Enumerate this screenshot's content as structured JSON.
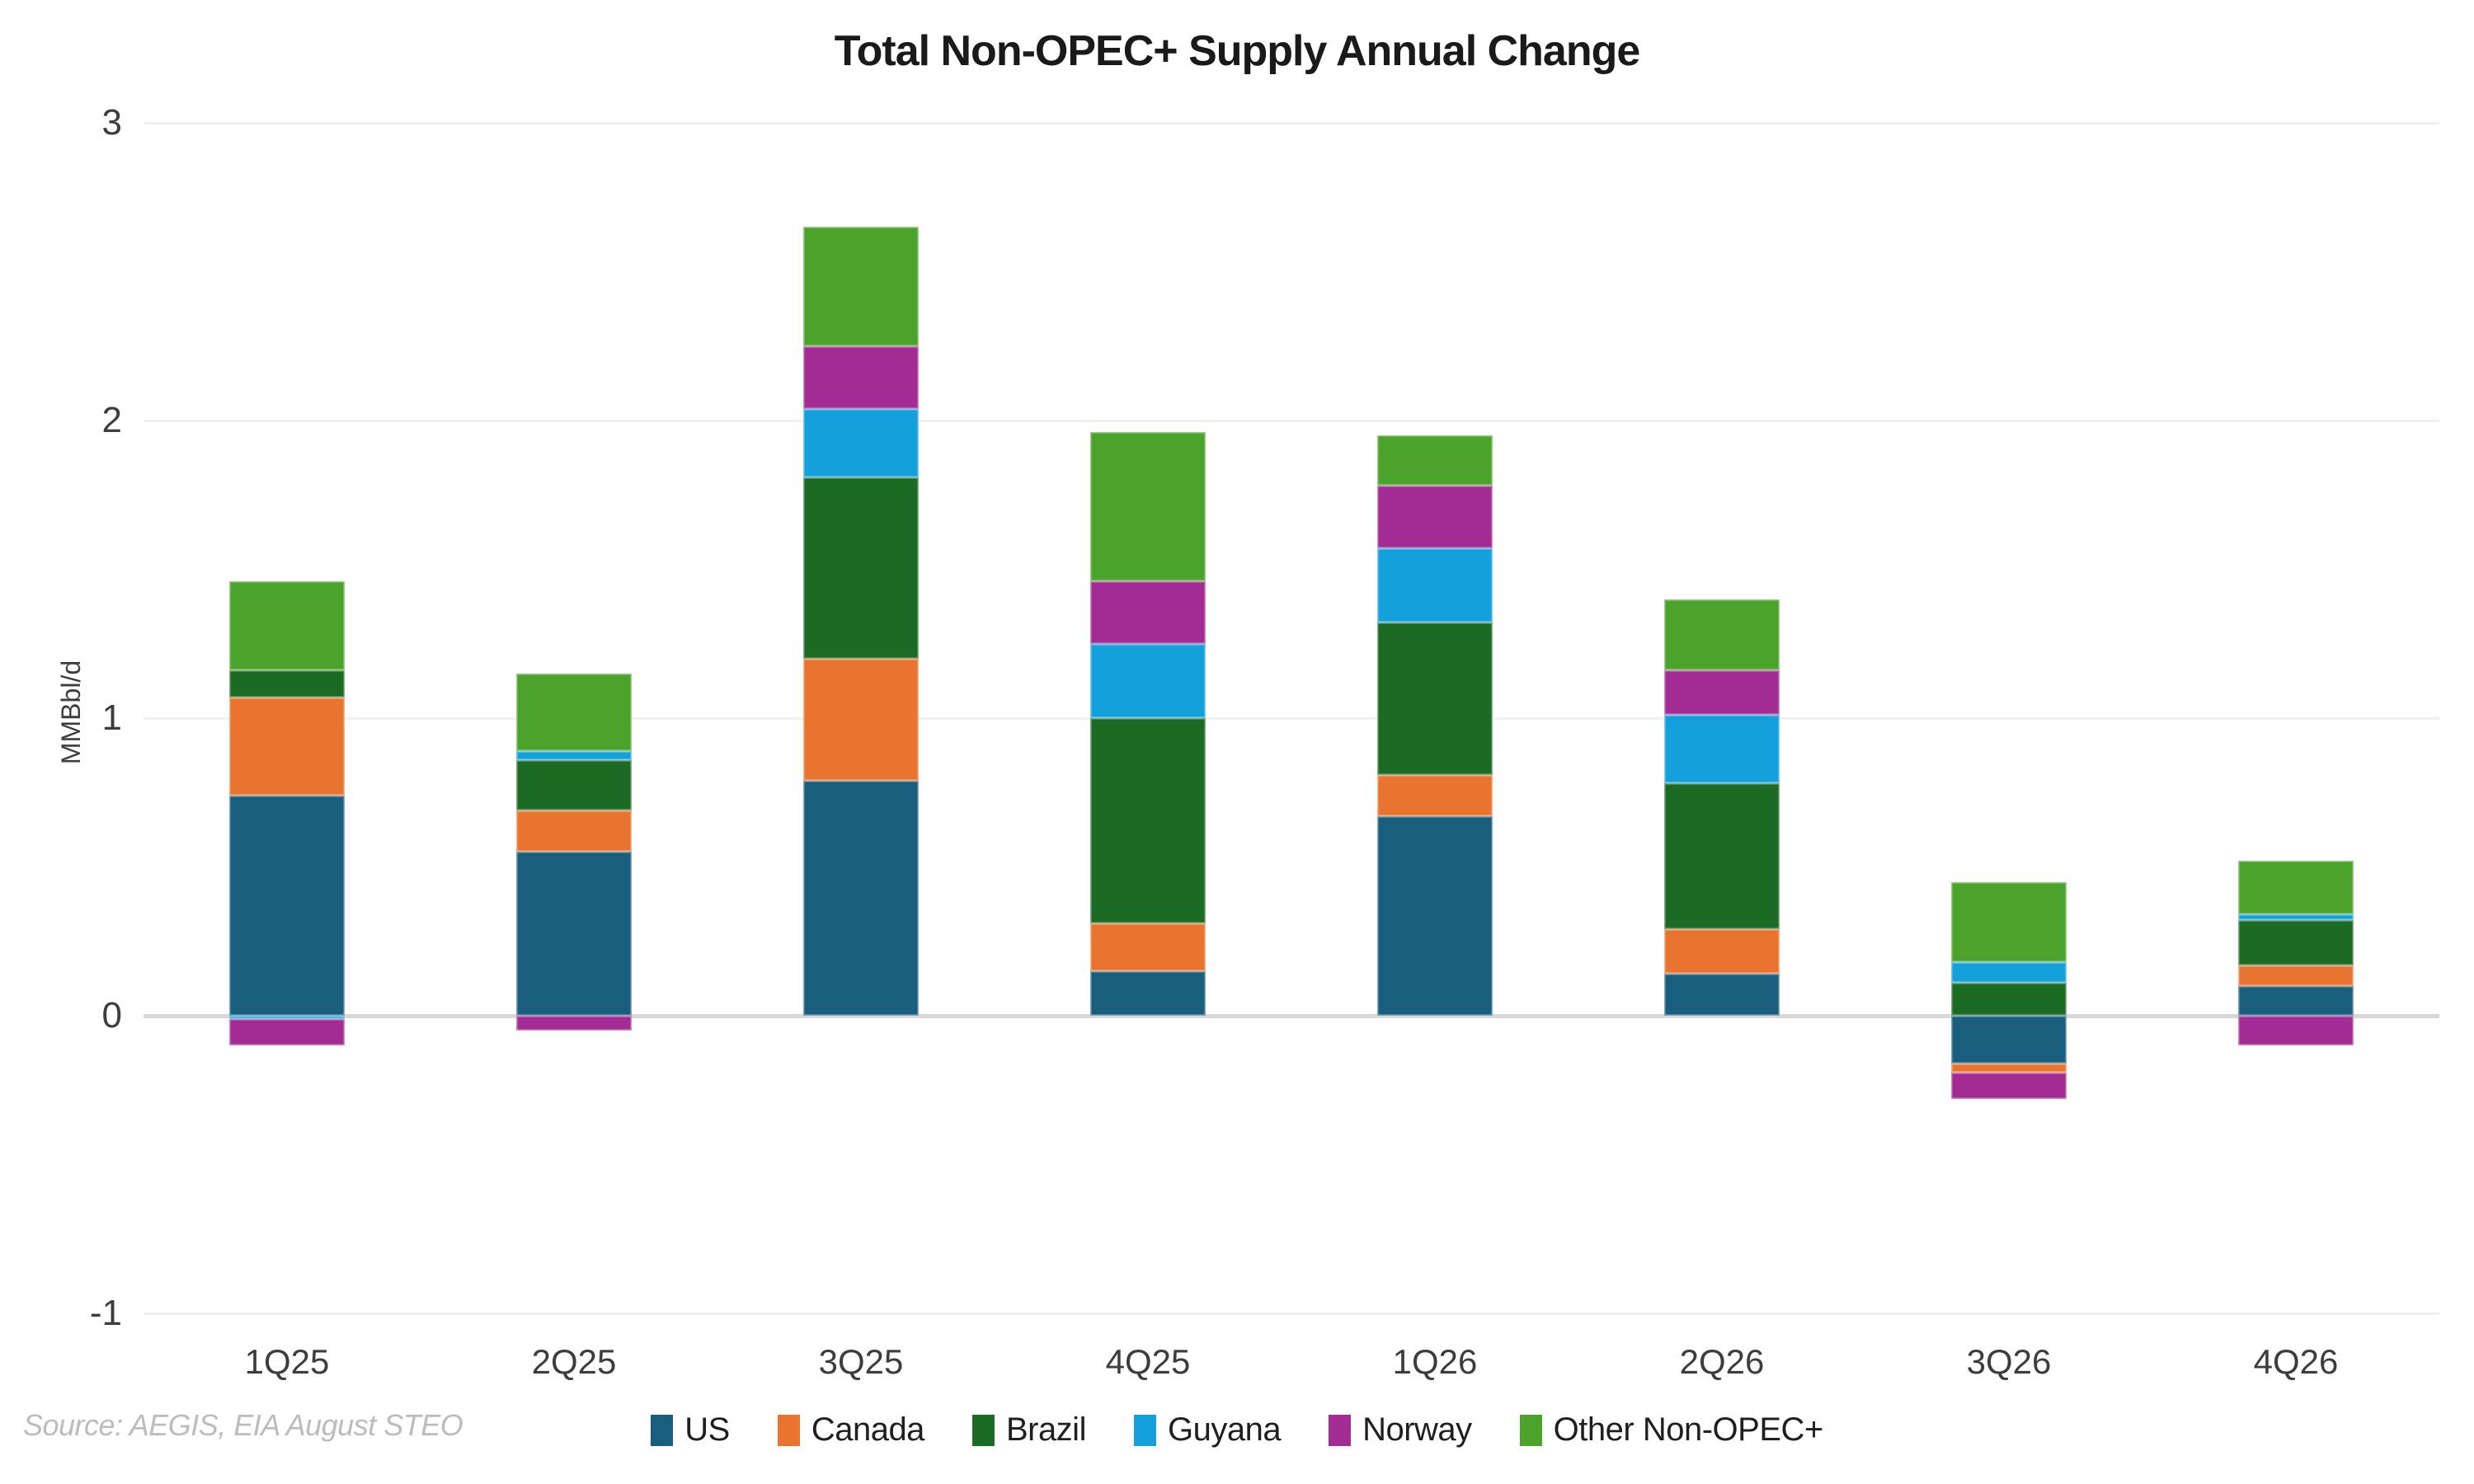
{
  "title": "Total Non-OPEC+ Supply Annual Change",
  "source_note": "Source: AEGIS, EIA August STEO",
  "y_axis": {
    "label": "MMBbl/d"
  },
  "colors": {
    "us": "#1A5E7E",
    "canada": "#E8742F",
    "brazil": "#1C6B24",
    "guyana": "#14A0DB",
    "norway": "#A22B94",
    "other": "#4CA32C",
    "gridline": "#f0f0f0",
    "zero_line": "#d7d7d7"
  },
  "chart_data": {
    "type": "bar",
    "stacked": true,
    "title": "Total Non-OPEC+ Supply Annual Change",
    "xlabel": "",
    "ylabel": "MMBbl/d",
    "ylim": [
      -1,
      3
    ],
    "yticks": [
      3,
      2,
      1,
      0,
      -1
    ],
    "grid": "horizontal",
    "legend_position": "bottom",
    "categories": [
      "1Q25",
      "2Q25",
      "3Q25",
      "4Q25",
      "1Q26",
      "2Q26",
      "3Q26",
      "4Q26"
    ],
    "series": [
      {
        "name": "US",
        "color": "#1A5E7E",
        "values": [
          0.74,
          0.55,
          0.79,
          0.15,
          0.67,
          0.14,
          -0.16,
          0.1
        ]
      },
      {
        "name": "Canada",
        "color": "#E8742F",
        "values": [
          0.33,
          0.14,
          0.41,
          0.16,
          0.14,
          0.15,
          -0.03,
          0.07
        ]
      },
      {
        "name": "Brazil",
        "color": "#1C6B24",
        "values": [
          0.09,
          0.17,
          0.61,
          0.69,
          0.51,
          0.49,
          0.11,
          0.15
        ]
      },
      {
        "name": "Guyana",
        "color": "#14A0DB",
        "values": [
          -0.01,
          0.03,
          0.23,
          0.25,
          0.25,
          0.23,
          0.07,
          0.02
        ]
      },
      {
        "name": "Norway",
        "color": "#A22B94",
        "values": [
          -0.09,
          -0.05,
          0.21,
          0.21,
          0.21,
          0.15,
          -0.09,
          -0.1
        ]
      },
      {
        "name": "Other Non-OPEC+",
        "color": "#4CA32C",
        "values": [
          0.3,
          0.26,
          0.4,
          0.5,
          0.17,
          0.24,
          0.27,
          0.18
        ]
      }
    ]
  }
}
